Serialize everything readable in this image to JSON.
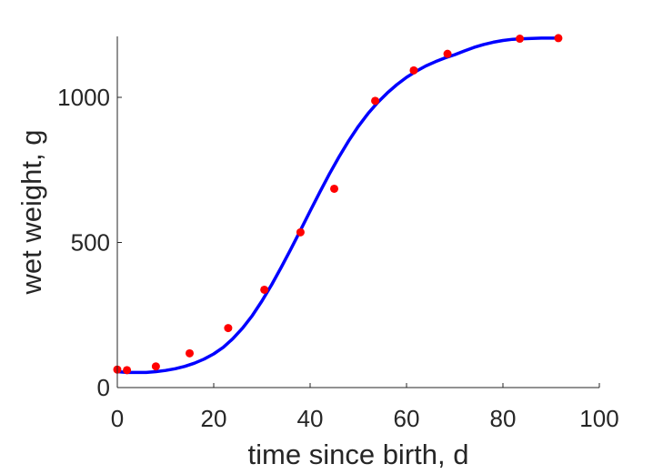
{
  "chart_data": {
    "type": "scatter",
    "title": "",
    "xlabel": "time since birth, d",
    "ylabel": "wet weight, g",
    "xlim": [
      0,
      100
    ],
    "ylim": [
      0,
      1210
    ],
    "xticks": [
      0,
      20,
      40,
      60,
      80,
      100
    ],
    "xtick_labels": [
      "0",
      "20",
      "40",
      "60",
      "80",
      "100"
    ],
    "yticks": [
      0,
      500,
      1000
    ],
    "ytick_labels": [
      "0",
      "500",
      "1000"
    ],
    "grid": false,
    "legend": "none",
    "series": [
      {
        "kind": "points",
        "color": "#ff0000",
        "x": [
          0,
          2,
          8,
          15,
          23,
          30.5,
          38,
          45,
          53.5,
          61.5,
          68.5,
          83.5,
          91.5
        ],
        "y": [
          62,
          60,
          73,
          118,
          205,
          337,
          535,
          685,
          988,
          1093,
          1150,
          1202,
          1204
        ]
      },
      {
        "kind": "line",
        "color": "#0000ff",
        "x": [
          0,
          2,
          4,
          6,
          8,
          10,
          12,
          14,
          16,
          18,
          20,
          22,
          24,
          26,
          28,
          30,
          32,
          34,
          36,
          38,
          40,
          42,
          44,
          46,
          48,
          50,
          52,
          54,
          56,
          58,
          60,
          62,
          64,
          66,
          68,
          70,
          72,
          74,
          76,
          78,
          80,
          82,
          84,
          86,
          88,
          90,
          91
        ],
        "y": [
          55,
          52,
          52,
          52,
          55,
          59,
          65,
          73,
          84,
          98,
          116,
          139,
          169,
          205,
          248,
          298,
          354,
          414,
          477,
          542,
          608,
          673,
          736,
          795,
          850,
          900,
          944,
          982,
          1015,
          1044,
          1069,
          1090,
          1108,
          1123,
          1136,
          1147,
          1160,
          1172,
          1182,
          1190,
          1196,
          1200,
          1202,
          1203,
          1204,
          1204,
          1204
        ]
      }
    ]
  }
}
